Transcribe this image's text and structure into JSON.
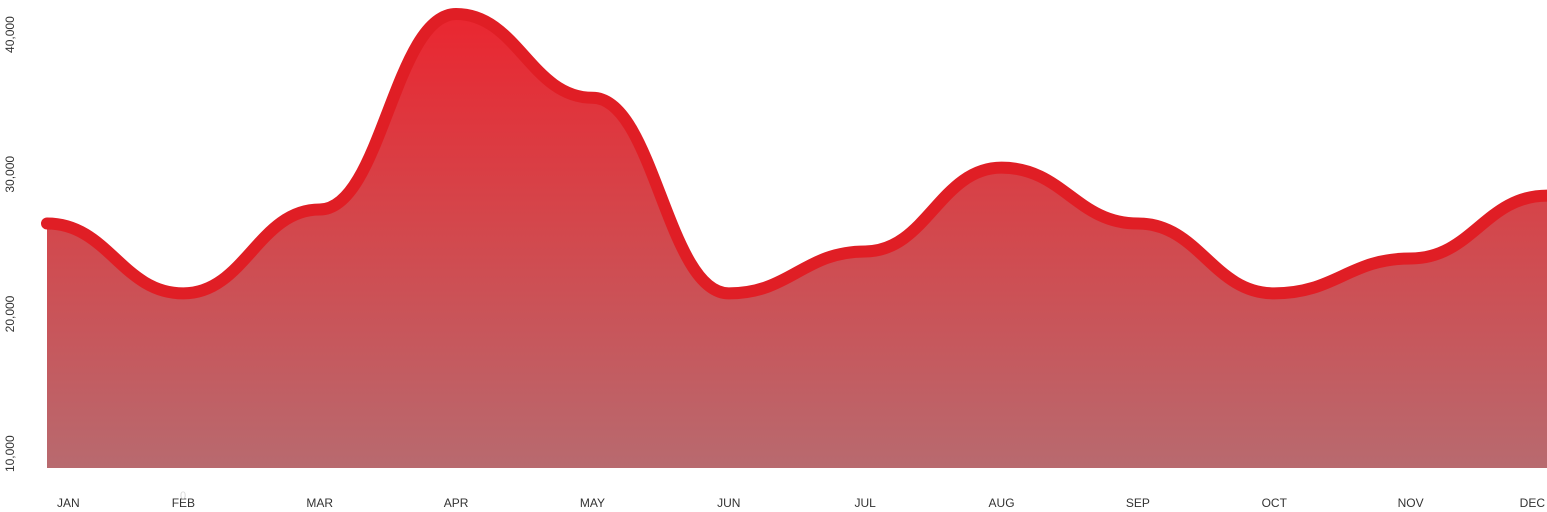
{
  "chart_data": {
    "type": "area",
    "categories": [
      "JAN",
      "FEB",
      "MAR",
      "APR",
      "MAY",
      "JUN",
      "JUL",
      "AUG",
      "SEP",
      "OCT",
      "NOV",
      "DEC"
    ],
    "x": [
      "JAN",
      "FEB",
      "MAR",
      "APR",
      "MAY",
      "JUN",
      "JUL",
      "AUG",
      "SEP",
      "OCT",
      "NOV",
      "DEC"
    ],
    "series": [
      {
        "values": [
          26000,
          21000,
          27000,
          41000,
          35000,
          21000,
          24000,
          30000,
          26000,
          21000,
          23500,
          28000
        ]
      }
    ],
    "yticks": [
      "10,000",
      "20,000",
      "30,000",
      "40,000"
    ],
    "ytick_values": [
      10000,
      20000,
      30000,
      40000
    ],
    "ylim": [
      8500,
      42000
    ],
    "stray_label": "0",
    "grid": false,
    "legend": "none",
    "colors": {
      "line": "#e01e25",
      "fill_top": "#ea2630",
      "fill_bottom": "#b86a6f"
    }
  }
}
